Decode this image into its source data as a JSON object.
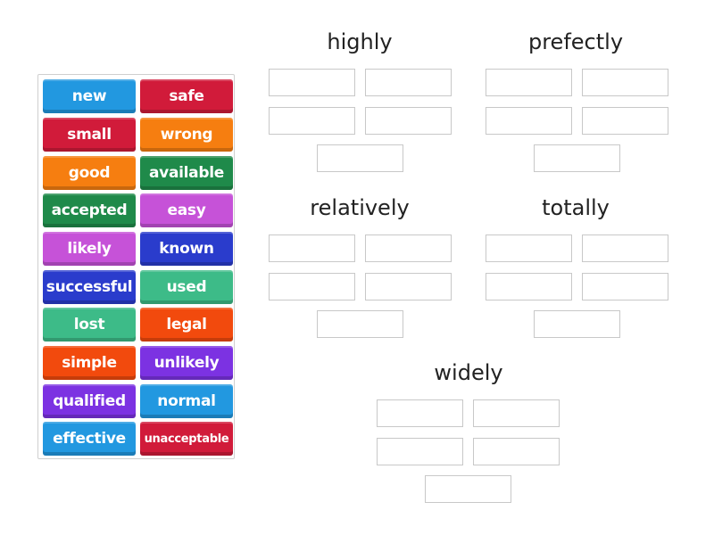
{
  "tiles": [
    {
      "label": "new",
      "color": "#2298e0"
    },
    {
      "label": "safe",
      "color": "#d11b3a"
    },
    {
      "label": "small",
      "color": "#d11b3a"
    },
    {
      "label": "wrong",
      "color": "#f67e10"
    },
    {
      "label": "good",
      "color": "#f67e10"
    },
    {
      "label": "available",
      "color": "#1f8a4a"
    },
    {
      "label": "accepted",
      "color": "#1f8a4a"
    },
    {
      "label": "easy",
      "color": "#c652d8"
    },
    {
      "label": "likely",
      "color": "#c652d8"
    },
    {
      "label": "known",
      "color": "#2a3ccc"
    },
    {
      "label": "successful",
      "color": "#2a3ccc"
    },
    {
      "label": "used",
      "color": "#3dbb88"
    },
    {
      "label": "lost",
      "color": "#3dbb88"
    },
    {
      "label": "legal",
      "color": "#f24a0d"
    },
    {
      "label": "simple",
      "color": "#f24a0d"
    },
    {
      "label": "unlikely",
      "color": "#7c32e2"
    },
    {
      "label": "qualified",
      "color": "#7c32e2"
    },
    {
      "label": "normal",
      "color": "#2298e0"
    },
    {
      "label": "effective",
      "color": "#2298e0"
    },
    {
      "label": "unacceptable",
      "color": "#d11b3a"
    }
  ],
  "groups": [
    {
      "title": "highly"
    },
    {
      "title": "prefectly"
    },
    {
      "title": "relatively"
    },
    {
      "title": "totally"
    },
    {
      "title": "widely"
    }
  ]
}
